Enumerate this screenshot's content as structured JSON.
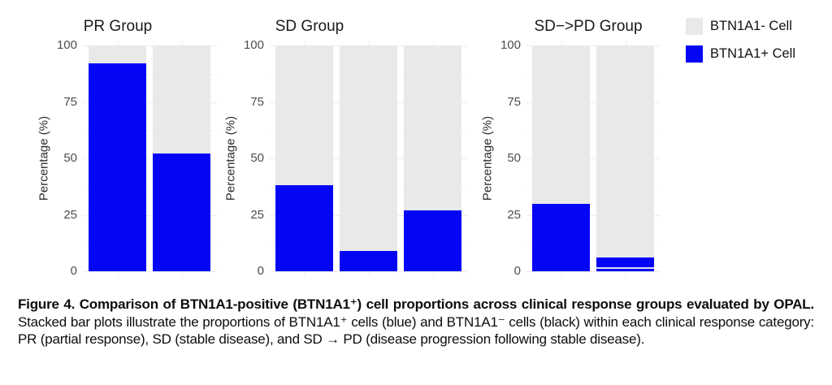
{
  "legend": {
    "position": "top-right",
    "entries": [
      {
        "label": "BTN1A1- Cell",
        "color": "#E9E9E9"
      },
      {
        "label": "BTN1A1+ Cell",
        "color": "#0505F5"
      }
    ]
  },
  "chart_data": [
    {
      "type": "bar",
      "stacked": true,
      "title": "PR Group",
      "xlabel": "",
      "ylabel": "Percentage (%)",
      "ylim": [
        0,
        100
      ],
      "yticks": [
        0,
        25,
        50,
        75,
        100
      ],
      "grid": true,
      "legend_position": "figure-top-right",
      "categories": [
        "",
        ""
      ],
      "series": [
        {
          "name": "BTN1A1+ Cell",
          "color": "#0505F5",
          "values": [
            92,
            52
          ]
        },
        {
          "name": "BTN1A1- Cell",
          "color": "#E9E9E9",
          "values": [
            8,
            48
          ]
        }
      ]
    },
    {
      "type": "bar",
      "stacked": true,
      "title": "SD Group",
      "xlabel": "",
      "ylabel": "Percentage (%)",
      "ylim": [
        0,
        100
      ],
      "yticks": [
        0,
        25,
        50,
        75,
        100
      ],
      "grid": true,
      "legend_position": "figure-top-right",
      "categories": [
        "",
        "",
        ""
      ],
      "series": [
        {
          "name": "BTN1A1+ Cell",
          "color": "#0505F5",
          "values": [
            38,
            9,
            27
          ]
        },
        {
          "name": "BTN1A1- Cell",
          "color": "#E9E9E9",
          "values": [
            62,
            91,
            73
          ]
        }
      ]
    },
    {
      "type": "bar",
      "stacked": true,
      "title": "SD−>PD Group",
      "xlabel": "",
      "ylabel": "Percentage (%)",
      "ylim": [
        0,
        100
      ],
      "yticks": [
        0,
        25,
        50,
        75,
        100
      ],
      "grid": true,
      "legend_position": "figure-top-right",
      "categories": [
        "",
        ""
      ],
      "series": [
        {
          "name": "BTN1A1+ Cell",
          "color": "#0505F5",
          "values": [
            30,
            6
          ]
        },
        {
          "name": "BTN1A1- Cell",
          "color": "#E9E9E9",
          "values": [
            70,
            94
          ]
        }
      ],
      "bar_dividers": [
        {
          "bar_index": 1,
          "at_value": 1
        }
      ]
    }
  ],
  "caption": {
    "bold": "Figure 4. Comparison of BTN1A1-positive (BTN1A1⁺) cell proportions across clinical response groups evaluated by OPAL.",
    "regular": "Stacked bar plots illustrate the proportions of BTN1A1⁺ cells (blue) and BTN1A1⁻ cells (black) within each clinical response category: PR (partial response), SD (stable disease), and SD → PD (disease progression following stable disease)."
  }
}
